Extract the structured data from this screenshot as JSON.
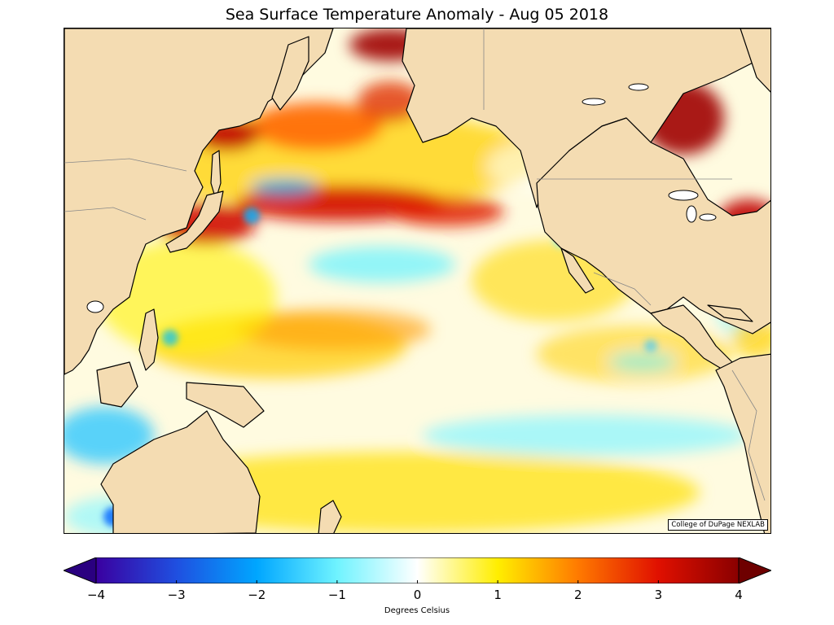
{
  "title": "Sea Surface Temperature Anomaly - Aug 05 2018",
  "credit": "College of DuPage NEXLAB",
  "colorbar": {
    "label": "Degrees Celsius",
    "min": -4,
    "max": 4,
    "extend": "both",
    "ticks": [
      {
        "value": -4,
        "label": "−4"
      },
      {
        "value": -3,
        "label": "−3"
      },
      {
        "value": -2,
        "label": "−2"
      },
      {
        "value": -1,
        "label": "−1"
      },
      {
        "value": 0,
        "label": "0"
      },
      {
        "value": 1,
        "label": "1"
      },
      {
        "value": 2,
        "label": "2"
      },
      {
        "value": 3,
        "label": "3"
      },
      {
        "value": 4,
        "label": "4"
      }
    ],
    "colors": [
      {
        "value": -4,
        "color": "#3a00a0"
      },
      {
        "value": -3,
        "color": "#1f4fe0"
      },
      {
        "value": -2,
        "color": "#00a6ff"
      },
      {
        "value": -1,
        "color": "#6ff3ff"
      },
      {
        "value": 0,
        "color": "#ffffff"
      },
      {
        "value": 1,
        "color": "#ffee00"
      },
      {
        "value": 2,
        "color": "#ff7a00"
      },
      {
        "value": 3,
        "color": "#e01000"
      },
      {
        "value": 4,
        "color": "#8a0000"
      }
    ]
  },
  "land_color": "#f4dcb2",
  "region": "North Pacific Ocean"
}
